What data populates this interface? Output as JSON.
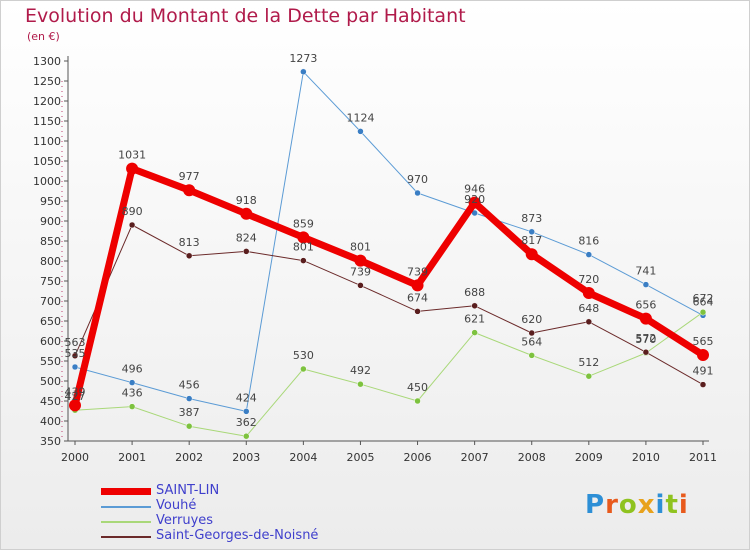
{
  "header": {
    "title": "Evolution du Montant de la Dette par Habitant",
    "subtitle": "(en €)"
  },
  "logo": {
    "text": "Proxiti",
    "letter_colors": [
      "#2d8fd6",
      "#e85a1c",
      "#8fc31f",
      "#e8a21c",
      "#2d8fd6",
      "#8fc31f",
      "#e85a1c"
    ]
  },
  "chart_data": {
    "type": "line",
    "x": [
      "2000",
      "2001",
      "2002",
      "2003",
      "2004",
      "2005",
      "2006",
      "2007",
      "2008",
      "2009",
      "2010",
      "2011"
    ],
    "y_ticks": [
      350,
      400,
      450,
      500,
      550,
      600,
      650,
      700,
      750,
      800,
      850,
      900,
      950,
      1000,
      1050,
      1100,
      1150,
      1200,
      1250,
      1300
    ],
    "ylim": [
      350,
      1300
    ],
    "grid": false,
    "legend_position": "bottom-left",
    "series": [
      {
        "name": "Vouhé",
        "color": "#5b9bd5",
        "marker": "#3a7ec4",
        "width": 1,
        "values": [
          535,
          496,
          456,
          424,
          1273,
          1124,
          970,
          920,
          873,
          816,
          741,
          664
        ]
      },
      {
        "name": "Verruyes",
        "color": "#a9d879",
        "marker": "#7dc23e",
        "width": 1,
        "values": [
          427,
          436,
          387,
          362,
          530,
          492,
          450,
          621,
          564,
          512,
          570,
          672
        ]
      },
      {
        "name": "Saint-Georges-de-Noisné",
        "color": "#6b2a2a",
        "marker": "#5a1e1e",
        "width": 1,
        "values": [
          563,
          890,
          813,
          824,
          801,
          739,
          674,
          688,
          620,
          648,
          572,
          491
        ]
      },
      {
        "name": "SAINT-LIN",
        "color": "#ee0000",
        "marker": "#ee0000",
        "width": 7,
        "values": [
          439,
          1031,
          977,
          918,
          859,
          801,
          739,
          946,
          817,
          720,
          656,
          565
        ]
      }
    ],
    "data_labels": [
      [
        "535",
        "496",
        "456",
        "424",
        "1273",
        "1124",
        "970",
        "920",
        "873",
        "816",
        "741",
        "664"
      ],
      [
        "427",
        "436",
        "387",
        "362",
        "530",
        "492",
        "450",
        "621",
        "564",
        "512",
        "570",
        "672"
      ],
      [
        "563",
        "890",
        "813",
        "824",
        "801",
        "739",
        "674",
        "688",
        "620",
        "648",
        "572",
        "491"
      ],
      [
        "439",
        "1031",
        "977",
        "918",
        "859",
        "801",
        "739",
        "946",
        "817",
        "720",
        "656",
        "565"
      ]
    ],
    "legend_order": [
      "SAINT-LIN",
      "Vouhé",
      "Verruyes",
      "Saint-Georges-de-Noisné"
    ]
  }
}
